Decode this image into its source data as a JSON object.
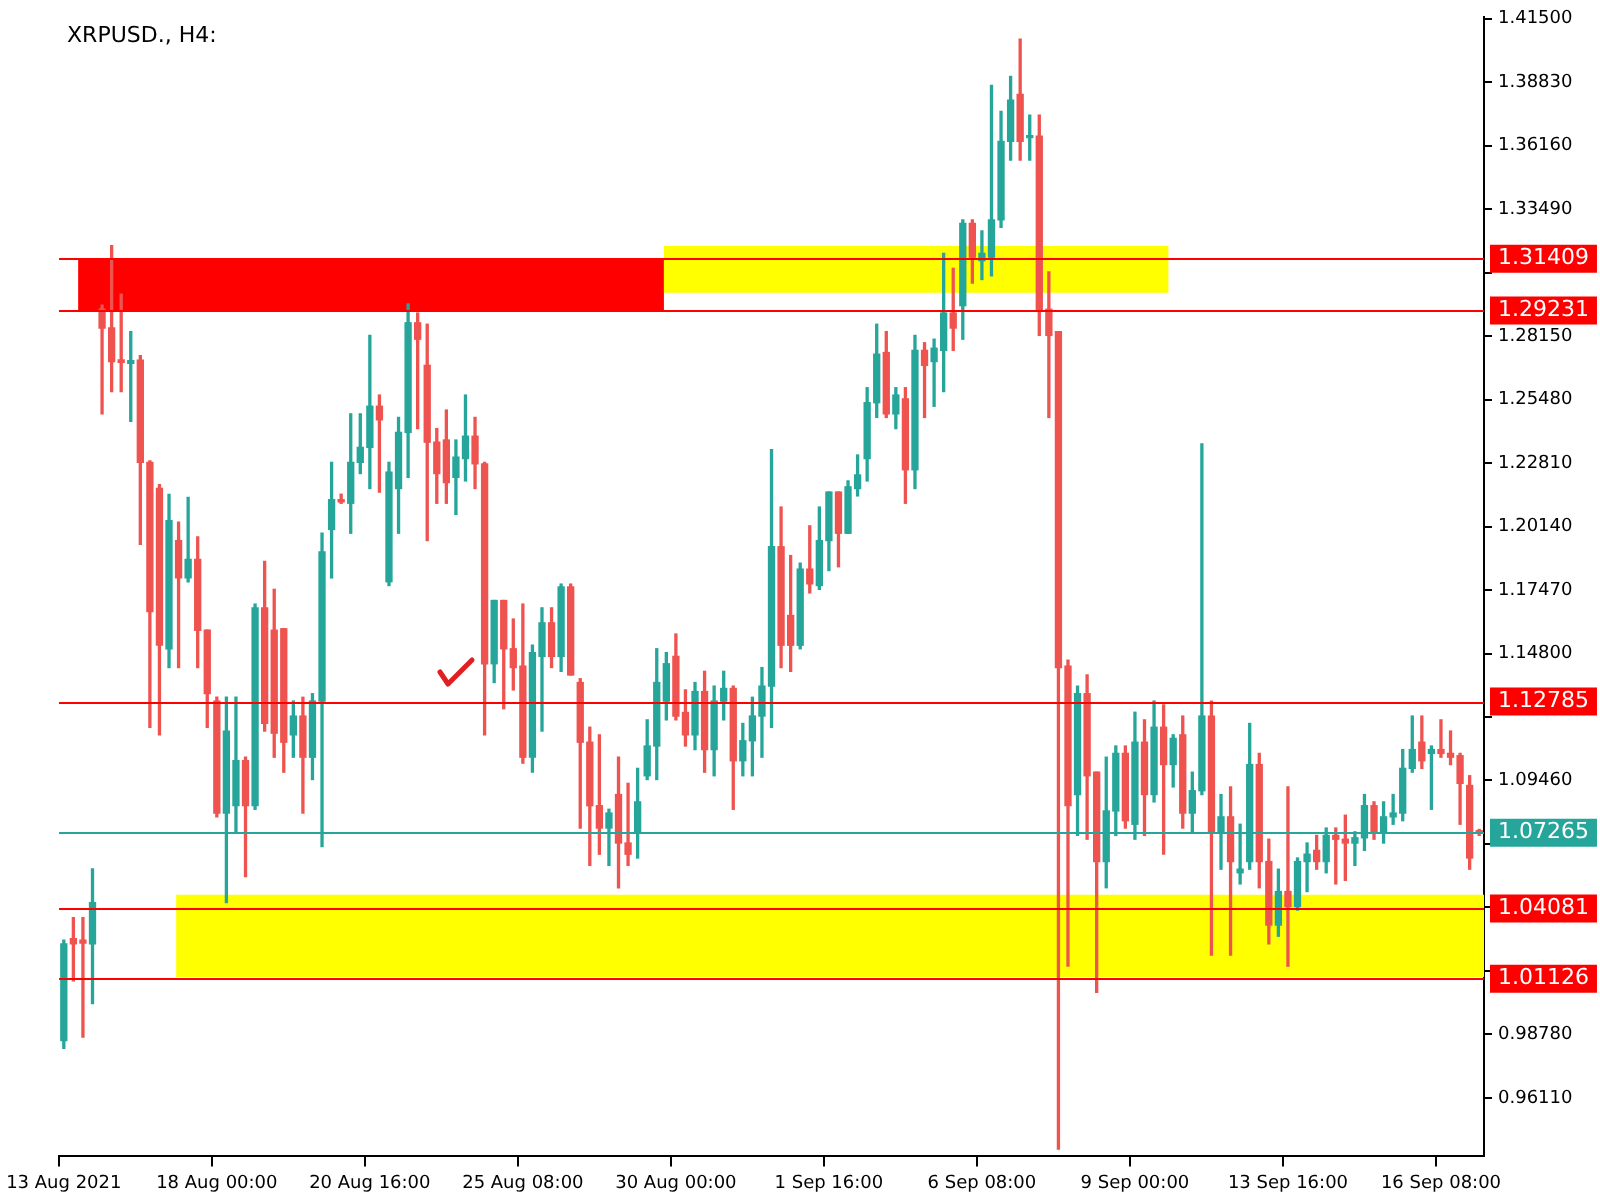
{
  "chart_data": {
    "type": "candlestick",
    "title": "XRPUSD., H4:",
    "categories": [
      "13 Aug 2021",
      null,
      null,
      null,
      null,
      null,
      null,
      null,
      null,
      null,
      null,
      null,
      null,
      null,
      null,
      null,
      "18 Aug 00:00",
      null,
      null,
      null,
      null,
      null,
      null,
      null,
      null,
      null,
      null,
      null,
      null,
      null,
      null,
      null,
      "20 Aug 16:00",
      null,
      null,
      null,
      null,
      null,
      null,
      null,
      null,
      null,
      null,
      null,
      null,
      null,
      null,
      null,
      "25 Aug 08:00",
      null,
      null,
      null,
      null,
      null,
      null,
      null,
      null,
      null,
      null,
      null,
      null,
      null,
      null,
      null,
      "30 Aug 00:00",
      null,
      null,
      null,
      null,
      null,
      null,
      null,
      null,
      null,
      null,
      null,
      null,
      null,
      null,
      null,
      "1 Sep 16:00",
      null,
      null,
      null,
      null,
      null,
      null,
      null,
      null,
      null,
      null,
      null,
      null,
      null,
      null,
      null,
      "6 Sep 08:00",
      null,
      null,
      null,
      null,
      null,
      null,
      null,
      null,
      null,
      null,
      null,
      null,
      null,
      null,
      null,
      "9 Sep 00:00",
      null,
      null,
      null,
      null,
      null,
      null,
      null,
      null,
      null,
      null,
      null,
      null,
      null,
      null,
      null,
      "13 Sep 16:00",
      null,
      null,
      null,
      null,
      null,
      null,
      null,
      null,
      null,
      null,
      null,
      null,
      null,
      null,
      null,
      "16 Sep 08:00",
      null,
      null,
      null,
      null
    ],
    "ohlc": [
      [
        0.9852,
        1.0275,
        0.982,
        1.0259
      ],
      [
        1.0281,
        1.0369,
        1.0103,
        1.0259
      ],
      [
        1.0275,
        1.0369,
        0.9867,
        1.0262
      ],
      [
        1.0259,
        1.0574,
        1.0008,
        1.0432
      ],
      [
        1.2928,
        1.2945,
        1.2488,
        1.2849
      ],
      [
        1.2849,
        1.3195,
        1.2582,
        1.2708
      ],
      [
        1.2715,
        1.2991,
        1.2582,
        1.2705
      ],
      [
        1.27,
        1.2834,
        1.2457,
        1.2712
      ],
      [
        1.2714,
        1.2733,
        1.1939,
        1.2284
      ],
      [
        1.2284,
        1.229,
        1.117,
        1.1656
      ],
      [
        1.2174,
        1.219,
        1.1138,
        1.1515
      ],
      [
        1.15,
        1.2149,
        1.1421,
        1.2039
      ],
      [
        1.1955,
        1.2033,
        1.1421,
        1.1798
      ],
      [
        1.1798,
        1.2137,
        1.1782,
        1.1876
      ],
      [
        1.1876,
        1.197,
        1.1421,
        1.1578
      ],
      [
        1.1578,
        1.1578,
        1.117,
        1.1311
      ],
      [
        1.128,
        1.1296,
        1.0793,
        1.0809
      ],
      [
        1.0809,
        1.1296,
        1.0432,
        1.1154
      ],
      [
        1.084,
        1.1296,
        1.073,
        1.1029
      ],
      [
        1.1029,
        1.1044,
        1.0542,
        1.084
      ],
      [
        1.084,
        1.1688,
        1.0825,
        1.1672
      ],
      [
        1.1672,
        1.1867,
        1.1154,
        1.1186
      ],
      [
        1.1578,
        1.175,
        1.1044,
        1.1145
      ],
      [
        1.1584,
        1.1584,
        1.0981,
        1.1107
      ],
      [
        1.1138,
        1.128,
        1.1044,
        1.1217
      ],
      [
        1.1217,
        1.1296,
        1.0809,
        1.1044
      ],
      [
        1.1044,
        1.1311,
        1.095,
        1.128
      ],
      [
        1.128,
        1.1986,
        1.0668,
        1.1907
      ],
      [
        1.2002,
        1.2284,
        1.1798,
        1.2127
      ],
      [
        1.2127,
        1.215,
        1.2112,
        1.2118
      ],
      [
        1.2112,
        1.2488,
        1.1986,
        1.2284
      ],
      [
        1.2284,
        1.2488,
        1.2237,
        1.2347
      ],
      [
        1.2347,
        1.2818,
        1.2174,
        1.252
      ],
      [
        1.252,
        1.2567,
        1.2159,
        1.2463
      ],
      [
        1.1782,
        1.2284,
        1.1766,
        1.2243
      ],
      [
        1.2174,
        1.2473,
        1.1986,
        1.241
      ],
      [
        1.241,
        1.295,
        1.2221,
        1.2871
      ],
      [
        1.2871,
        1.2912,
        1.2426,
        1.2802
      ],
      [
        1.2692,
        1.2865,
        1.1955,
        1.2369
      ],
      [
        1.2369,
        1.2426,
        1.2112,
        1.2237
      ],
      [
        1.2378,
        1.2504,
        1.2112,
        1.2199
      ],
      [
        1.2221,
        1.2378,
        1.2065,
        1.2306
      ],
      [
        1.23,
        1.2567,
        1.2206,
        1.2394
      ],
      [
        1.2394,
        1.2473,
        1.2174,
        1.2278
      ],
      [
        1.2278,
        1.2284,
        1.1138,
        1.1437
      ],
      [
        1.1437,
        1.1703,
        1.1358,
        1.1703
      ],
      [
        1.1703,
        1.1703,
        1.1248,
        1.15
      ],
      [
        1.15,
        1.1625,
        1.1327,
        1.1421
      ],
      [
        1.1427,
        1.1688,
        1.1019,
        1.1044
      ],
      [
        1.1044,
        1.1515,
        1.0981,
        1.1484
      ],
      [
        1.1468,
        1.1672,
        1.1154,
        1.1609
      ],
      [
        1.1609,
        1.1672,
        1.1421,
        1.1468
      ],
      [
        1.1468,
        1.1772,
        1.1405,
        1.176
      ],
      [
        1.176,
        1.1772,
        1.139,
        1.139
      ],
      [
        1.1358,
        1.1374,
        1.0746,
        1.1107
      ],
      [
        1.1107,
        1.117,
        1.0589,
        1.084
      ],
      [
        1.084,
        1.1138,
        1.0636,
        1.0746
      ],
      [
        1.0746,
        1.0825,
        1.0589,
        1.0809
      ],
      [
        1.0887,
        1.1044,
        1.0495,
        1.0683
      ],
      [
        1.0683,
        1.0934,
        1.0589,
        1.0636
      ],
      [
        1.073,
        1.0997,
        1.062,
        1.0856
      ],
      [
        1.0966,
        1.1201,
        1.095,
        1.1091
      ],
      [
        1.1091,
        1.15,
        1.095,
        1.1358
      ],
      [
        1.128,
        1.1484,
        1.1201,
        1.1437
      ],
      [
        1.1468,
        1.1562,
        1.1201,
        1.1217
      ],
      [
        1.1232,
        1.1327,
        1.1091,
        1.1138
      ],
      [
        1.1138,
        1.1358,
        1.1076,
        1.132
      ],
      [
        1.132,
        1.1405,
        1.0981,
        1.1076
      ],
      [
        1.1076,
        1.1343,
        1.0966,
        1.128
      ],
      [
        1.128,
        1.1405,
        1.1201,
        1.1333
      ],
      [
        1.1333,
        1.1343,
        1.0825,
        1.1029
      ],
      [
        1.1029,
        1.1186,
        1.0966,
        1.1113
      ],
      [
        1.1113,
        1.1296,
        1.0966,
        1.1217
      ],
      [
        1.1217,
        1.1421,
        1.1044,
        1.1343
      ],
      [
        1.1343,
        1.2337,
        1.117,
        1.1929
      ],
      [
        1.1929,
        1.2096,
        1.1421,
        1.1515
      ],
      [
        1.164,
        1.1892,
        1.1405,
        1.1515
      ],
      [
        1.1515,
        1.186,
        1.15,
        1.1835
      ],
      [
        1.1835,
        1.2017,
        1.1735,
        1.1773
      ],
      [
        1.1766,
        1.2096,
        1.175,
        1.1955
      ],
      [
        1.1955,
        1.2159,
        1.1829,
        1.2159
      ],
      [
        1.2159,
        1.2159,
        1.1845,
        1.1986
      ],
      [
        1.1986,
        1.2206,
        1.1986,
        1.2181
      ],
      [
        1.2174,
        1.2315,
        1.2143,
        1.2231
      ],
      [
        1.23,
        1.2598,
        1.2206,
        1.2535
      ],
      [
        1.2535,
        1.2865,
        1.2473,
        1.2739
      ],
      [
        1.2746,
        1.2834,
        1.2473,
        1.2488
      ],
      [
        1.2488,
        1.2598,
        1.2426,
        1.2567
      ],
      [
        1.2551,
        1.2598,
        1.2112,
        1.2253
      ],
      [
        1.2253,
        1.2818,
        1.2174,
        1.2755
      ],
      [
        1.2755,
        1.2787,
        1.2473,
        1.2692
      ],
      [
        1.2708,
        1.2802,
        1.252,
        1.2764
      ],
      [
        1.2755,
        1.3163,
        1.2582,
        1.2912
      ],
      [
        1.2912,
        1.31,
        1.2755,
        1.2849
      ],
      [
        1.2943,
        1.3304,
        1.2802,
        1.3289
      ],
      [
        1.3289,
        1.3304,
        1.3038,
        1.3147
      ],
      [
        1.3132,
        1.3257,
        1.3053,
        1.3163
      ],
      [
        1.3147,
        1.3869,
        1.3069,
        1.3304
      ],
      [
        1.3304,
        1.376,
        1.3273,
        1.3634
      ],
      [
        1.3634,
        1.3907,
        1.3555,
        1.3807
      ],
      [
        1.3832,
        1.4064,
        1.3555,
        1.3634
      ],
      [
        1.365,
        1.3744,
        1.3555,
        1.3656
      ],
      [
        1.3656,
        1.3744,
        1.2818,
        1.2928
      ],
      [
        1.2928,
        1.3085,
        1.2473,
        1.2818
      ],
      [
        1.2834,
        1.2834,
        0.9396,
        1.1421
      ],
      [
        1.1427,
        1.1452,
        1.0165,
        1.084
      ],
      [
        1.0887,
        1.1343,
        1.0715,
        1.1311
      ],
      [
        1.1311,
        1.139,
        1.0699,
        1.0966
      ],
      [
        1.0981,
        1.0981,
        1.0055,
        1.0605
      ],
      [
        1.0605,
        1.1044,
        1.0495,
        1.0818
      ],
      [
        1.0818,
        1.1091,
        1.0715,
        1.106
      ],
      [
        1.106,
        1.1091,
        1.0746,
        1.0777
      ],
      [
        1.0762,
        1.1233,
        1.0699,
        1.1107
      ],
      [
        1.1107,
        1.1201,
        1.0715,
        1.0887
      ],
      [
        1.0887,
        1.128,
        1.0856,
        1.117
      ],
      [
        1.117,
        1.1264,
        1.0636,
        1.1013
      ],
      [
        1.1013,
        1.1138,
        1.0919,
        1.1123
      ],
      [
        1.1138,
        1.1217,
        1.0746,
        1.0809
      ],
      [
        1.0809,
        1.0981,
        1.073,
        1.0903
      ],
      [
        1.0903,
        1.2362,
        1.0887,
        1.1217
      ],
      [
        1.1217,
        1.128,
        1.0212,
        1.073
      ],
      [
        1.073,
        1.0887,
        1.0573,
        1.0793
      ],
      [
        1.0793,
        1.0919,
        1.0212,
        1.0605
      ],
      [
        1.0558,
        1.0762,
        1.0511,
        1.0573
      ],
      [
        1.0605,
        1.1186,
        1.0573,
        1.1013
      ],
      [
        1.1013,
        1.106,
        1.0495,
        1.0605
      ],
      [
        1.0605,
        1.0699,
        1.0259,
        1.0338
      ],
      [
        1.0338,
        1.0573,
        1.0291,
        1.0479
      ],
      [
        1.0479,
        1.0919,
        1.0165,
        1.0416
      ],
      [
        1.0416,
        1.062,
        1.0401,
        1.0605
      ],
      [
        1.0605,
        1.0683,
        1.0479,
        1.0636
      ],
      [
        1.0652,
        1.0715,
        1.0573,
        1.0605
      ],
      [
        1.0605,
        1.0746,
        1.0558,
        1.0715
      ],
      [
        1.0715,
        1.0746,
        1.0511,
        1.0699
      ],
      [
        1.0699,
        1.08,
        1.0526,
        1.0683
      ],
      [
        1.0683,
        1.073,
        1.0589,
        1.0705
      ],
      [
        1.0705,
        1.0887,
        1.0652,
        1.084
      ],
      [
        1.084,
        1.0856,
        1.0699,
        1.073
      ],
      [
        1.073,
        1.0856,
        1.0683,
        1.0793
      ],
      [
        1.0793,
        1.0887,
        1.0762,
        1.0809
      ],
      [
        1.0809,
        1.1076,
        1.0777,
        1.0997
      ],
      [
        1.0997,
        1.1217,
        1.0981,
        1.1076
      ],
      [
        1.1107,
        1.1217,
        1.0997,
        1.1029
      ],
      [
        1.106,
        1.1091,
        1.0825,
        1.1076
      ],
      [
        1.1076,
        1.1201,
        1.1044,
        1.106
      ],
      [
        1.106,
        1.1154,
        1.1013,
        1.1044
      ],
      [
        1.105,
        1.106,
        1.0762,
        1.0934
      ],
      [
        1.0925,
        1.0966,
        1.0573,
        1.062
      ],
      [
        1.073,
        1.074,
        1.0715,
        1.07265
      ]
    ],
    "colors": [
      "#26a69a",
      "#ef5350",
      "#ef5350",
      "#26a69a",
      "#ef5350",
      "#ef5350",
      "#ef5350",
      "#26a69a",
      "#ef5350",
      "#ef5350",
      "#ef5350",
      "#26a69a",
      "#ef5350",
      "#26a69a",
      "#ef5350",
      "#ef5350",
      "#ef5350",
      "#26a69a",
      "#26a69a",
      "#ef5350",
      "#26a69a",
      "#ef5350",
      "#ef5350",
      "#ef5350",
      "#26a69a",
      "#ef5350",
      "#26a69a",
      "#26a69a",
      "#26a69a",
      "#ef5350",
      "#26a69a",
      "#26a69a",
      "#26a69a",
      "#ef5350",
      "#26a69a",
      "#26a69a",
      "#26a69a",
      "#ef5350",
      "#ef5350",
      "#ef5350",
      "#ef5350",
      "#26a69a",
      "#26a69a",
      "#ef5350",
      "#ef5350",
      "#26a69a",
      "#ef5350",
      "#ef5350",
      "#ef5350",
      "#26a69a",
      "#26a69a",
      "#ef5350",
      "#26a69a",
      "#ef5350",
      "#ef5350",
      "#ef5350",
      "#ef5350",
      "#26a69a",
      "#ef5350",
      "#ef5350",
      "#26a69a",
      "#26a69a",
      "#26a69a",
      "#26a69a",
      "#ef5350",
      "#ef5350",
      "#26a69a",
      "#ef5350",
      "#26a69a",
      "#26a69a",
      "#ef5350",
      "#26a69a",
      "#26a69a",
      "#26a69a",
      "#26a69a",
      "#ef5350",
      "#ef5350",
      "#26a69a",
      "#ef5350",
      "#26a69a",
      "#26a69a",
      "#ef5350",
      "#26a69a",
      "#26a69a",
      "#26a69a",
      "#26a69a",
      "#ef5350",
      "#26a69a",
      "#ef5350",
      "#26a69a",
      "#ef5350",
      "#26a69a",
      "#26a69a",
      "#ef5350",
      "#26a69a",
      "#ef5350",
      "#26a69a",
      "#26a69a",
      "#26a69a",
      "#26a69a",
      "#ef5350",
      "#26a69a",
      "#ef5350",
      "#ef5350",
      "#ef5350",
      "#ef5350",
      "#26a69a",
      "#ef5350",
      "#ef5350",
      "#26a69a",
      "#26a69a",
      "#ef5350",
      "#26a69a",
      "#ef5350",
      "#26a69a",
      "#ef5350",
      "#26a69a",
      "#ef5350",
      "#26a69a",
      "#26a69a",
      "#ef5350",
      "#26a69a",
      "#ef5350",
      "#26a69a",
      "#26a69a",
      "#ef5350",
      "#ef5350",
      "#26a69a",
      "#ef5350",
      "#26a69a",
      "#26a69a",
      "#ef5350",
      "#26a69a",
      "#ef5350",
      "#ef5350",
      "#26a69a",
      "#26a69a",
      "#ef5350",
      "#26a69a",
      "#26a69a",
      "#26a69a",
      "#26a69a",
      "#ef5350",
      "#26a69a",
      "#ef5350",
      "#ef5350",
      "#ef5350",
      "#ef5350",
      "#ef5350"
    ],
    "ylim": [
      0.9365,
      1.4158
    ],
    "yticks": [
      {
        "value": 1.415,
        "label": "1.41500"
      },
      {
        "value": 1.3883,
        "label": "1.38830"
      },
      {
        "value": 1.3616,
        "label": "1.36160"
      },
      {
        "value": 1.3349,
        "label": "1.33490"
      },
      {
        "value": 1.3082,
        "label": null
      },
      {
        "value": 1.2815,
        "label": "1.28150"
      },
      {
        "value": 1.2548,
        "label": "1.25480"
      },
      {
        "value": 1.2281,
        "label": "1.22810"
      },
      {
        "value": 1.2014,
        "label": "1.20140"
      },
      {
        "value": 1.1747,
        "label": "1.17470"
      },
      {
        "value": 1.148,
        "label": "1.14800"
      },
      {
        "value": 1.1213,
        "label": null
      },
      {
        "value": 1.0946,
        "label": "1.09460"
      },
      {
        "value": 1.0679,
        "label": null
      },
      {
        "value": 1.0412,
        "label": null
      },
      {
        "value": 1.0145,
        "label": null
      },
      {
        "value": 0.9878,
        "label": "0.98780"
      },
      {
        "value": 0.9611,
        "label": "0.96110"
      }
    ],
    "bands": [
      {
        "axis": "y",
        "from": 1.29231,
        "to": 1.31409,
        "color": "#ff0000"
      },
      {
        "axis": "y",
        "from": 1.2997,
        "to": 1.3194,
        "color": "#ffff00"
      },
      {
        "axis": "y",
        "from": 1.012,
        "to": 1.0465,
        "color": "#ffff00"
      }
    ],
    "ref_lines": [
      {
        "axis": "y",
        "value": 1.31409,
        "label": "1.31409",
        "color": "#ff0000"
      },
      {
        "axis": "y",
        "value": 1.29231,
        "label": "1.29231",
        "color": "#ff0000"
      },
      {
        "axis": "y",
        "value": 1.12785,
        "label": "1.12785",
        "color": "#ff0000"
      },
      {
        "axis": "y",
        "value": 1.07265,
        "label": "1.07265",
        "color": "#26a69a"
      },
      {
        "axis": "y",
        "value": 1.04081,
        "label": "1.04081",
        "color": "#ff0000"
      },
      {
        "axis": "y",
        "value": 1.01126,
        "label": "1.01126",
        "color": "#ff0000"
      }
    ]
  }
}
